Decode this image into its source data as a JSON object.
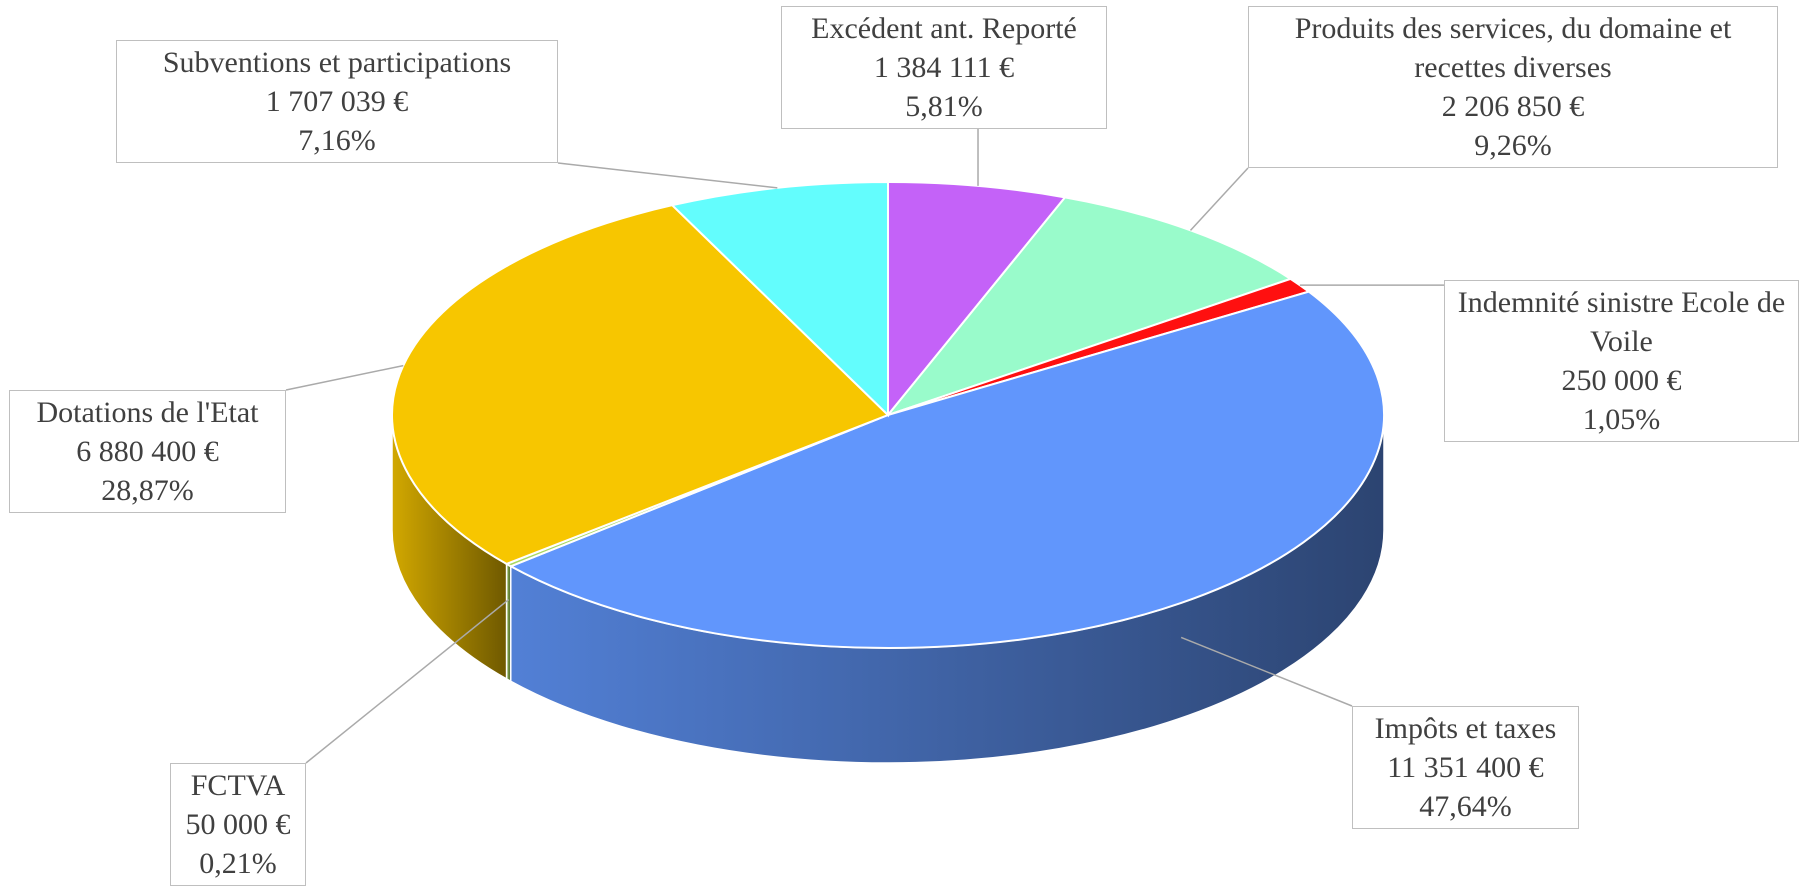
{
  "chart_data": {
    "type": "pie3d",
    "categories": [
      "Excédent ant. Reporté",
      "Produits des services, du domaine et recettes diverses",
      "Indemnité sinistre Ecole de Voile",
      "Impôts et taxes",
      "FCTVA",
      "Dotations de l'Etat",
      "Subventions et participations"
    ],
    "values": [
      1384111,
      2206850,
      250000,
      11351400,
      50000,
      6880400,
      1707039
    ],
    "value_labels": [
      "1 384 111 €",
      "2 206 850 €",
      "250 000 €",
      "11 351 400 €",
      "50 000 €",
      "6 880 400 €",
      "1 707 039 €"
    ],
    "percentages": [
      5.81,
      9.26,
      1.05,
      47.64,
      0.21,
      28.87,
      7.16
    ],
    "percentage_labels": [
      "5,81%",
      "9,26%",
      "1,05%",
      "47,64%",
      "0,21%",
      "28,87%",
      "7,16%"
    ],
    "colors": [
      "#c462f8",
      "#99fbcb",
      "#ff1010",
      "#6196fc",
      "#a8d860",
      "#f7c600",
      "#63fdfd"
    ]
  }
}
